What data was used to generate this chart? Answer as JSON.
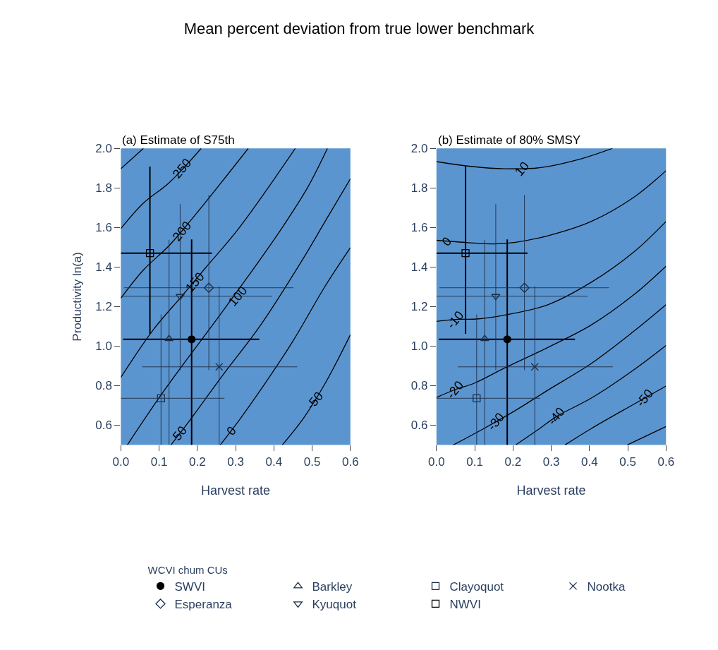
{
  "chart_data": [
    {
      "type": "line",
      "title": "Mean percent deviation from true lower benchmark",
      "subtitle": "(a) Estimate of S75th",
      "xlabel": "Harvest rate",
      "ylabel": "Productivity ln(a)",
      "legend_title": "WCVI chum CUs",
      "legend": "bottom",
      "grid": false,
      "xlim": [
        0,
        0.6
      ],
      "xticks": [
        {
          "value": 0,
          "label": "0.0"
        },
        {
          "value": 0.1,
          "label": "0.1"
        },
        {
          "value": 0.2,
          "label": "0.2"
        },
        {
          "value": 0.3,
          "label": "0.3"
        },
        {
          "value": 0.4,
          "label": "0.4"
        },
        {
          "value": 0.5,
          "label": "0.5"
        },
        {
          "value": 0.6,
          "label": "0.6"
        }
      ],
      "ylim": [
        0.5,
        2.0
      ],
      "yticks": [
        {
          "value": 0.6,
          "label": "0.6"
        },
        {
          "value": 0.8,
          "label": "0.8"
        },
        {
          "value": 1,
          "label": "1.0"
        },
        {
          "value": 1.2,
          "label": "1.2"
        },
        {
          "value": 1.4,
          "label": "1.4"
        },
        {
          "value": 1.6,
          "label": "1.6"
        },
        {
          "value": 1.8,
          "label": "1.8"
        },
        {
          "value": 2,
          "label": "2.0"
        }
      ],
      "series": [
        {
          "color": "#000000",
          "x": [
            0,
            0.059
          ],
          "values": [
            1.897,
            2.0
          ]
        },
        {
          "color": "#000000",
          "x": [
            0,
            0.059,
            0.126,
            0.21
          ],
          "values": [
            1.594,
            1.723,
            1.826,
            2.0
          ]
        },
        {
          "color": "#000000",
          "x": [
            0,
            0.059,
            0.126,
            0.198,
            0.333
          ],
          "values": [
            1.242,
            1.385,
            1.508,
            1.672,
            2.0
          ]
        },
        {
          "color": "#000000",
          "x": [
            0,
            0.087,
            0.159,
            0.221,
            0.31,
            0.456
          ],
          "values": [
            0.842,
            1.088,
            1.252,
            1.395,
            1.6,
            2.0
          ]
        },
        {
          "color": "#000000",
          "x": [
            0.017,
            0.115,
            0.26,
            0.333,
            0.422,
            0.489,
            0.54
          ],
          "values": [
            0.5,
            0.78,
            1.16,
            1.354,
            1.6,
            1.805,
            2.0
          ]
        },
        {
          "color": "#000000",
          "x": [
            0.131,
            0.185,
            0.266,
            0.366,
            0.478,
            0.534,
            0.6
          ],
          "values": [
            0.5,
            0.637,
            0.852,
            1.108,
            1.447,
            1.631,
            1.846
          ]
        },
        {
          "color": "#000000",
          "x": [
            0.26,
            0.31,
            0.366,
            0.45,
            0.534,
            0.6
          ],
          "values": [
            0.5,
            0.627,
            0.78,
            1.026,
            1.303,
            1.498
          ]
        },
        {
          "color": "#000000",
          "x": [
            0.422,
            0.478,
            0.534,
            0.6
          ],
          "values": [
            0.5,
            0.637,
            0.811,
            1.057
          ]
        },
        {
          "type": "scatter",
          "name": "SWVI",
          "marker": "circle",
          "color": "#000000",
          "x": [
            0.185
          ],
          "values": [
            1.034
          ],
          "xerrors": [
            [
              0.006,
              0.362
            ]
          ],
          "errors": [
            [
              0.5,
              1.539
            ]
          ]
        },
        {
          "type": "scatter",
          "name": "Barkley",
          "marker": "triangle",
          "color": "#1c2e4a",
          "x": [
            0.126
          ],
          "values": [
            1.037
          ],
          "errors": [
            [
              0.5,
              1.537
            ]
          ]
        },
        {
          "type": "scatter",
          "name": "Clayoquot",
          "marker": "square",
          "color": "#1c2e4a",
          "x": [
            0.105
          ],
          "values": [
            0.736
          ],
          "xerrors": [
            [
              0,
              0.271
            ]
          ],
          "errors": [
            [
              0.5,
              1.16
            ]
          ]
        },
        {
          "type": "scatter",
          "name": "Nootka",
          "marker": "cross",
          "color": "#1c2e4a",
          "x": [
            0.257
          ],
          "values": [
            0.895
          ],
          "xerrors": [
            [
              0.056,
              0.461
            ]
          ],
          "errors": [
            [
              0.5,
              1.303
            ]
          ]
        },
        {
          "type": "scatter",
          "name": "Esperanza",
          "marker": "diamond",
          "color": "#1c2e4a",
          "x": [
            0.23
          ],
          "values": [
            1.295
          ],
          "xerrors": [
            [
              0.008,
              0.451
            ]
          ],
          "errors": [
            [
              0.878,
              1.764
            ]
          ]
        },
        {
          "type": "scatter",
          "name": "Kyuquot",
          "marker": "triangle-down",
          "color": "#1c2e4a",
          "x": [
            0.155
          ],
          "values": [
            1.252
          ],
          "xerrors": [
            [
              0,
              0.395
            ]
          ],
          "errors": [
            [
              0.878,
              1.718
            ]
          ]
        },
        {
          "type": "scatter",
          "name": "NWVI",
          "marker": "square",
          "color": "#000000",
          "x": [
            0.076
          ],
          "values": [
            1.47
          ],
          "xerrors": [
            [
              0,
              0.238
            ]
          ],
          "errors": [
            [
              1.062,
              1.908
            ]
          ]
        }
      ],
      "annotations": [
        {
          "text": "250",
          "x": 0.159,
          "y": 1.898
        },
        {
          "text": "200",
          "x": 0.159,
          "y": 1.58
        },
        {
          "text": "150",
          "x": 0.193,
          "y": 1.324
        },
        {
          "text": "100",
          "x": 0.305,
          "y": 1.252
        },
        {
          "text": "50",
          "x": 0.154,
          "y": 0.558
        },
        {
          "text": "0",
          "x": 0.288,
          "y": 0.571
        },
        {
          "text": "-50",
          "x": 0.506,
          "y": 0.724
        }
      ]
    },
    {
      "type": "line",
      "subtitle": "(b) Estimate of 80% SMSY",
      "xlabel": "Harvest rate",
      "legend": false,
      "grid": false,
      "xlim": [
        0,
        0.6
      ],
      "xticks": [
        {
          "value": 0,
          "label": "0.0"
        },
        {
          "value": 0.1,
          "label": "0.1"
        },
        {
          "value": 0.2,
          "label": "0.2"
        },
        {
          "value": 0.3,
          "label": "0.3"
        },
        {
          "value": 0.4,
          "label": "0.4"
        },
        {
          "value": 0.5,
          "label": "0.5"
        },
        {
          "value": 0.6,
          "label": "0.6"
        }
      ],
      "ylim": [
        0.5,
        2.0
      ],
      "yticks": [
        {
          "value": 0.6,
          "label": "0.6"
        },
        {
          "value": 0.8,
          "label": "0.8"
        },
        {
          "value": 1,
          "label": "1.0"
        },
        {
          "value": 1.2,
          "label": "1.2"
        },
        {
          "value": 1.4,
          "label": "1.4"
        },
        {
          "value": 1.6,
          "label": "1.6"
        },
        {
          "value": 1.8,
          "label": "1.8"
        },
        {
          "value": 2,
          "label": "2.0"
        }
      ],
      "series": [
        {
          "color": "#000000",
          "x": [
            0,
            0.094,
            0.178,
            0.269,
            0.381,
            0.46
          ],
          "values": [
            1.933,
            1.908,
            1.897,
            1.902,
            1.949,
            2.0
          ]
        },
        {
          "color": "#000000",
          "x": [
            0,
            0.055,
            0.151,
            0.207,
            0.291,
            0.404,
            0.516,
            0.6
          ],
          "values": [
            1.535,
            1.527,
            1.517,
            1.525,
            1.558,
            1.63,
            1.753,
            1.887
          ]
        },
        {
          "color": "#000000",
          "x": [
            0,
            0.049,
            0.106,
            0.179,
            0.291,
            0.404,
            0.516,
            0.6
          ],
          "values": [
            1.125,
            1.135,
            1.137,
            1.157,
            1.209,
            1.322,
            1.476,
            1.63
          ]
        },
        {
          "color": "#000000",
          "x": [
            0,
            0.049,
            0.1,
            0.179,
            0.291,
            0.404,
            0.516,
            0.6
          ],
          "values": [
            0.74,
            0.78,
            0.813,
            0.89,
            0.993,
            1.106,
            1.26,
            1.404
          ]
        },
        {
          "color": "#000000",
          "x": [
            0.044,
            0.123,
            0.207,
            0.291,
            0.404,
            0.516,
            0.6
          ],
          "values": [
            0.5,
            0.582,
            0.675,
            0.777,
            0.911,
            1.075,
            1.209
          ]
        },
        {
          "color": "#000000",
          "x": [
            0.207,
            0.269,
            0.314,
            0.404,
            0.516,
            0.6
          ],
          "values": [
            0.5,
            0.582,
            0.644,
            0.736,
            0.88,
            1.003
          ]
        },
        {
          "color": "#000000",
          "x": [
            0.336,
            0.404,
            0.516,
            0.6
          ],
          "values": [
            0.5,
            0.582,
            0.706,
            0.798
          ]
        },
        {
          "color": "#000000",
          "x": [
            0.499,
            0.6
          ],
          "values": [
            0.5,
            0.593
          ]
        },
        {
          "type": "scatter",
          "name": "SWVI",
          "marker": "circle",
          "color": "#000000",
          "x": [
            0.185
          ],
          "values": [
            1.034
          ],
          "xerrors": [
            [
              0.006,
              0.362
            ]
          ],
          "errors": [
            [
              0.5,
              1.539
            ]
          ]
        },
        {
          "type": "scatter",
          "name": "Barkley",
          "marker": "triangle",
          "color": "#1c2e4a",
          "x": [
            0.126
          ],
          "values": [
            1.037
          ],
          "errors": [
            [
              0.5,
              1.537
            ]
          ]
        },
        {
          "type": "scatter",
          "name": "Clayoquot",
          "marker": "square",
          "color": "#1c2e4a",
          "x": [
            0.105
          ],
          "values": [
            0.736
          ],
          "xerrors": [
            [
              0,
              0.271
            ]
          ],
          "errors": [
            [
              0.5,
              1.16
            ]
          ]
        },
        {
          "type": "scatter",
          "name": "Nootka",
          "marker": "cross",
          "color": "#1c2e4a",
          "x": [
            0.257
          ],
          "values": [
            0.895
          ],
          "xerrors": [
            [
              0.056,
              0.461
            ]
          ],
          "errors": [
            [
              0.5,
              1.303
            ]
          ]
        },
        {
          "type": "scatter",
          "name": "Esperanza",
          "marker": "diamond",
          "color": "#1c2e4a",
          "x": [
            0.23
          ],
          "values": [
            1.295
          ],
          "xerrors": [
            [
              0.008,
              0.451
            ]
          ],
          "errors": [
            [
              0.878,
              1.764
            ]
          ]
        },
        {
          "type": "scatter",
          "name": "Kyuquot",
          "marker": "triangle-down",
          "color": "#1c2e4a",
          "x": [
            0.155
          ],
          "values": [
            1.252
          ],
          "xerrors": [
            [
              0,
              0.395
            ]
          ],
          "errors": [
            [
              0.878,
              1.718
            ]
          ]
        },
        {
          "type": "scatter",
          "name": "NWVI",
          "marker": "square",
          "color": "#000000",
          "x": [
            0.076
          ],
          "values": [
            1.47
          ],
          "xerrors": [
            [
              0,
              0.238
            ]
          ],
          "errors": [
            [
              1.062,
              1.908
            ]
          ]
        }
      ],
      "annotations": [
        {
          "text": "10",
          "x": 0.224,
          "y": 1.897
        },
        {
          "text": "0",
          "x": 0.027,
          "y": 1.531
        },
        {
          "text": "-10",
          "x": 0.049,
          "y": 1.135
        },
        {
          "text": "-20",
          "x": 0.049,
          "y": 0.78
        },
        {
          "text": "-30",
          "x": 0.156,
          "y": 0.619
        },
        {
          "text": "-40",
          "x": 0.313,
          "y": 0.644
        },
        {
          "text": "-50",
          "x": 0.544,
          "y": 0.737
        }
      ]
    }
  ]
}
